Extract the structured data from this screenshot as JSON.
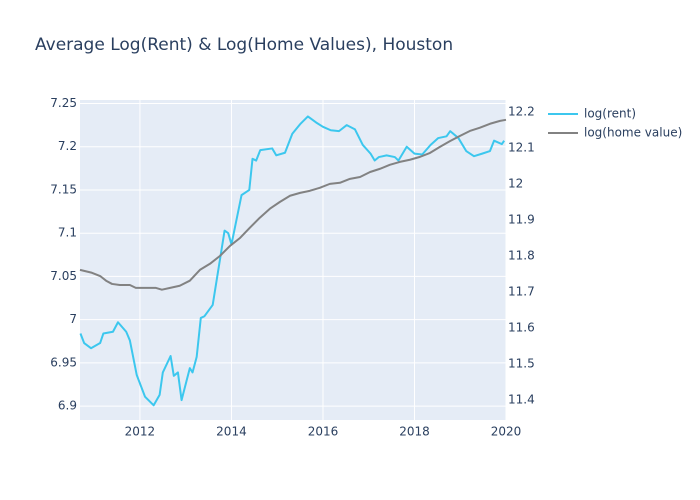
{
  "chart_data": {
    "type": "line",
    "title": "Average Log(Rent) & Log(Home Values), Houston",
    "xlim": [
      2010.69,
      2020
    ],
    "xticks": [
      2012,
      2014,
      2016,
      2018,
      2020
    ],
    "ylim": [
      6.884,
      7.254
    ],
    "yticks": [
      6.9,
      6.95,
      7,
      7.05,
      7.1,
      7.15,
      7.2,
      7.25
    ],
    "y2lim": [
      11.344,
      12.233
    ],
    "y2ticks": [
      11.4,
      11.5,
      11.6,
      11.7,
      11.8,
      11.9,
      12,
      12.1,
      12.2
    ],
    "grid": true,
    "legend": "right",
    "series": [
      {
        "name": "log(rent)",
        "color": "#3cc7ee",
        "axis": "y",
        "x": [
          2010.7,
          2010.78,
          2010.93,
          2011.13,
          2011.2,
          2011.41,
          2011.52,
          2011.7,
          2011.78,
          2011.93,
          2012.11,
          2012.3,
          2012.43,
          2012.5,
          2012.67,
          2012.74,
          2012.83,
          2012.91,
          2013.09,
          2013.15,
          2013.24,
          2013.33,
          2013.41,
          2013.59,
          2013.85,
          2013.93,
          2014.0,
          2014.22,
          2014.39,
          2014.46,
          2014.54,
          2014.63,
          2014.89,
          2014.98,
          2015.17,
          2015.33,
          2015.5,
          2015.67,
          2015.85,
          2016.0,
          2016.17,
          2016.35,
          2016.52,
          2016.7,
          2016.87,
          2017.04,
          2017.13,
          2017.22,
          2017.39,
          2017.57,
          2017.65,
          2017.83,
          2018.0,
          2018.17,
          2018.35,
          2018.52,
          2018.7,
          2018.78,
          2018.96,
          2019.13,
          2019.3,
          2019.48,
          2019.65,
          2019.74,
          2019.91,
          2019.96
        ],
        "values": [
          6.984,
          6.973,
          6.967,
          6.973,
          6.984,
          6.986,
          6.997,
          6.986,
          6.976,
          6.936,
          6.911,
          6.901,
          6.913,
          6.939,
          6.958,
          6.935,
          6.939,
          6.907,
          6.944,
          6.939,
          6.957,
          7.002,
          7.004,
          7.017,
          7.103,
          7.1,
          7.087,
          7.144,
          7.15,
          7.186,
          7.184,
          7.196,
          7.198,
          7.19,
          7.193,
          7.215,
          7.226,
          7.235,
          7.228,
          7.223,
          7.219,
          7.218,
          7.225,
          7.22,
          7.202,
          7.192,
          7.184,
          7.188,
          7.19,
          7.188,
          7.184,
          7.2,
          7.192,
          7.191,
          7.202,
          7.21,
          7.212,
          7.218,
          7.21,
          7.195,
          7.189,
          7.192,
          7.195,
          7.207,
          7.203,
          7.207
        ]
      },
      {
        "name": "log(home value)",
        "color": "#828282",
        "axis": "y2",
        "x": [
          2010.69,
          2010.95,
          2011.13,
          2011.26,
          2011.39,
          2011.56,
          2011.78,
          2011.91,
          2012.04,
          2012.22,
          2012.35,
          2012.48,
          2012.66,
          2012.87,
          2013.09,
          2013.31,
          2013.53,
          2013.75,
          2013.97,
          2014.19,
          2014.4,
          2014.62,
          2014.84,
          2015.06,
          2015.28,
          2015.5,
          2015.72,
          2015.93,
          2016.15,
          2016.37,
          2016.59,
          2016.81,
          2017.03,
          2017.25,
          2017.46,
          2017.68,
          2017.9,
          2018.12,
          2018.34,
          2018.56,
          2018.78,
          2018.99,
          2019.21,
          2019.43,
          2019.65,
          2019.87,
          2020.0
        ],
        "values": [
          11.761,
          11.753,
          11.744,
          11.731,
          11.722,
          11.719,
          11.719,
          11.711,
          11.711,
          11.711,
          11.711,
          11.706,
          11.711,
          11.717,
          11.731,
          11.761,
          11.778,
          11.8,
          11.828,
          11.85,
          11.878,
          11.906,
          11.931,
          11.95,
          11.967,
          11.975,
          11.981,
          11.989,
          12.0,
          12.003,
          12.014,
          12.019,
          12.033,
          12.042,
          12.053,
          12.061,
          12.067,
          12.075,
          12.086,
          12.103,
          12.119,
          12.133,
          12.147,
          12.156,
          12.167,
          12.175,
          12.178
        ]
      }
    ]
  }
}
